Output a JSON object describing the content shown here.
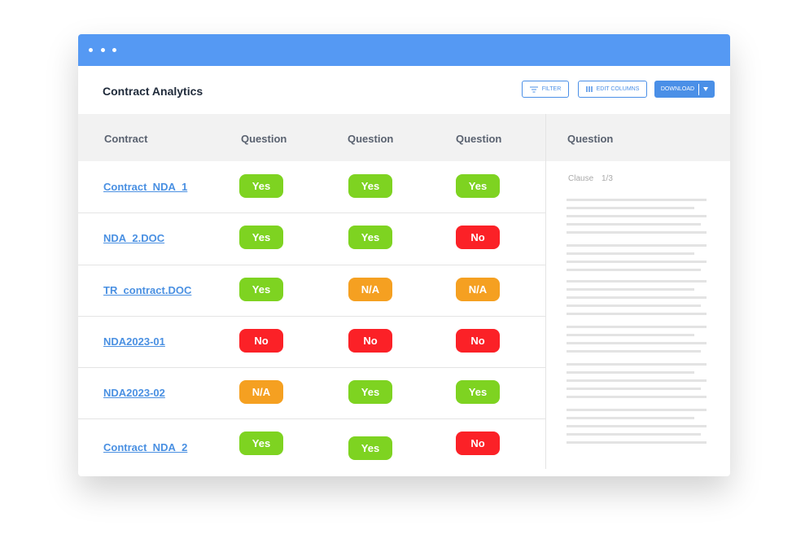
{
  "header": {
    "title": "Contract Analytics"
  },
  "toolbar": {
    "filter": "FILTER",
    "edit_columns": "EDIT COLUMNS",
    "download": "DOWNLOAD"
  },
  "table": {
    "columns": [
      "Contract",
      "Question",
      "Question",
      "Question"
    ],
    "rows": [
      {
        "contract": "Contract_NDA_1",
        "answers": [
          {
            "label": "Yes",
            "color": "#7ed321"
          },
          {
            "label": "Yes",
            "color": "#7ed321"
          },
          {
            "label": "Yes",
            "color": "#7ed321"
          }
        ]
      },
      {
        "contract": "NDA_2.DOC",
        "answers": [
          {
            "label": "Yes",
            "color": "#7ed321"
          },
          {
            "label": "Yes",
            "color": "#7ed321"
          },
          {
            "label": "No",
            "color": "#fb2127"
          }
        ]
      },
      {
        "contract": "TR_contract.DOC",
        "answers": [
          {
            "label": "Yes",
            "color": "#7ed321"
          },
          {
            "label": "N/A",
            "color": "#f5a021"
          },
          {
            "label": "N/A",
            "color": "#f5a021"
          }
        ]
      },
      {
        "contract": "NDA2023-01",
        "answers": [
          {
            "label": "No",
            "color": "#fb2127"
          },
          {
            "label": "No",
            "color": "#fb2127"
          },
          {
            "label": "No",
            "color": "#fb2127"
          }
        ]
      },
      {
        "contract": "NDA2023-02",
        "answers": [
          {
            "label": "N/A",
            "color": "#f5a021"
          },
          {
            "label": "Yes",
            "color": "#7ed321"
          },
          {
            "label": "Yes",
            "color": "#7ed321"
          }
        ]
      },
      {
        "contract": "Contract_NDA_2",
        "answers": [
          {
            "label": "Yes",
            "color": "#7ed321"
          },
          {
            "label": "Yes",
            "color": "#7ed321"
          },
          {
            "label": "No",
            "color": "#fb2127"
          }
        ]
      }
    ]
  },
  "side_panel": {
    "header": "Question",
    "clause_label": "Clause",
    "clause_position": "1/3"
  }
}
